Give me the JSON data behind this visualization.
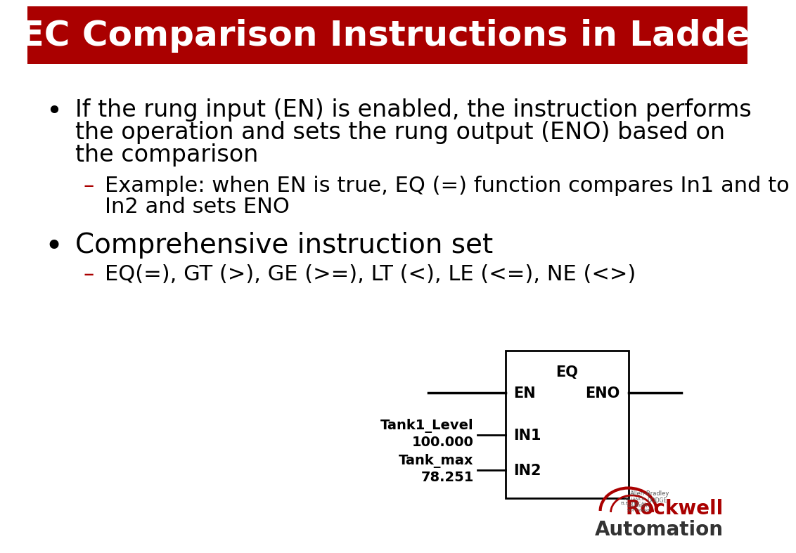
{
  "title": "IEC Comparison Instructions in Ladder",
  "title_bg_color": "#AA0000",
  "title_text_color": "#FFFFFF",
  "title_fontsize": 36,
  "bg_color": "#FFFFFF",
  "bullet1_line1": "If the rung input (EN) is enabled, the instruction performs",
  "bullet1_line2": "the operation and sets the rung output (ENO) based on",
  "bullet1_line3": "the comparison",
  "sub_bullet1_line1": "Example: when EN is true, EQ (=) function compares In1 and to",
  "sub_bullet1_line2": "In2 and sets ENO",
  "bullet2": "Comprehensive instruction set",
  "sub_bullet2": "EQ(=), GT (>), GE (>=), LT (<), LE (<=), NE (<>)",
  "bullet_fontsize": 24,
  "sub_bullet_fontsize": 22,
  "bullet2_fontsize": 28,
  "bullet_color": "#000000",
  "sub_bullet_color": "#AA0000",
  "diagram_label_eq": "EQ",
  "diagram_label_en": "EN",
  "diagram_label_eno": "ENO",
  "diagram_label_in1": "IN1",
  "diagram_label_in2": "IN2",
  "diagram_left_label1": "Tank1_Level",
  "diagram_left_label2": "100.000",
  "diagram_left_label3": "Tank_max",
  "diagram_left_label4": "78.251",
  "diagram_fontsize": 14,
  "rockwell_color": "#AA0000",
  "automation_color": "#333333",
  "logo_fontsize": 20
}
